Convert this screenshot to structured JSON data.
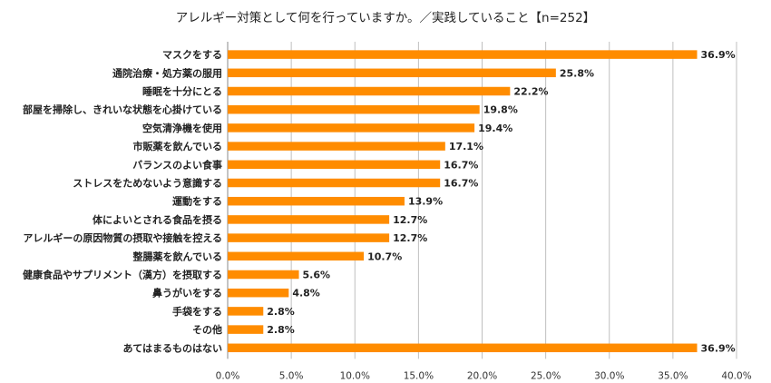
{
  "chart_data": {
    "type": "bar",
    "orientation": "horizontal",
    "title": "アレルギー対策として何を行っていますか。／実践していること【n=252】",
    "categories": [
      "マスクをする",
      "通院治療・処方薬の服用",
      "睡眠を十分にとる",
      "部屋を掃除し、きれいな状態を心掛けている",
      "空気清浄機を使用",
      "市販薬を飲んでいる",
      "バランスのよい食事",
      "ストレスをためないよう意識する",
      "運動をする",
      "体によいとされる食品を摂る",
      "アレルギーの原因物質の摂取や接触を控える",
      "整腸薬を飲んでいる",
      "健康食品やサプリメント（漢方）を摂取する",
      "鼻うがいをする",
      "手袋をする",
      "その他",
      "あてはまるものはない"
    ],
    "values": [
      36.9,
      25.8,
      22.2,
      19.8,
      19.4,
      17.1,
      16.7,
      16.7,
      13.9,
      12.7,
      12.7,
      10.7,
      5.6,
      4.8,
      2.8,
      2.8,
      36.9
    ],
    "value_labels": [
      "36.9%",
      "25.8%",
      "22.2%",
      "19.8%",
      "19.4%",
      "17.1%",
      "16.7%",
      "16.7%",
      "13.9%",
      "12.7%",
      "12.7%",
      "10.7%",
      "5.6%",
      "4.8%",
      "2.8%",
      "2.8%",
      "36.9%"
    ],
    "xlim": [
      0,
      40
    ],
    "ticks": [
      "0.0%",
      "5.0%",
      "10.0%",
      "15.0%",
      "20.0%",
      "25.0%",
      "30.0%",
      "35.0%",
      "40.0%"
    ],
    "grid": true,
    "bar_color": "#FF8C00",
    "grid_color": "#bfbfbf"
  }
}
